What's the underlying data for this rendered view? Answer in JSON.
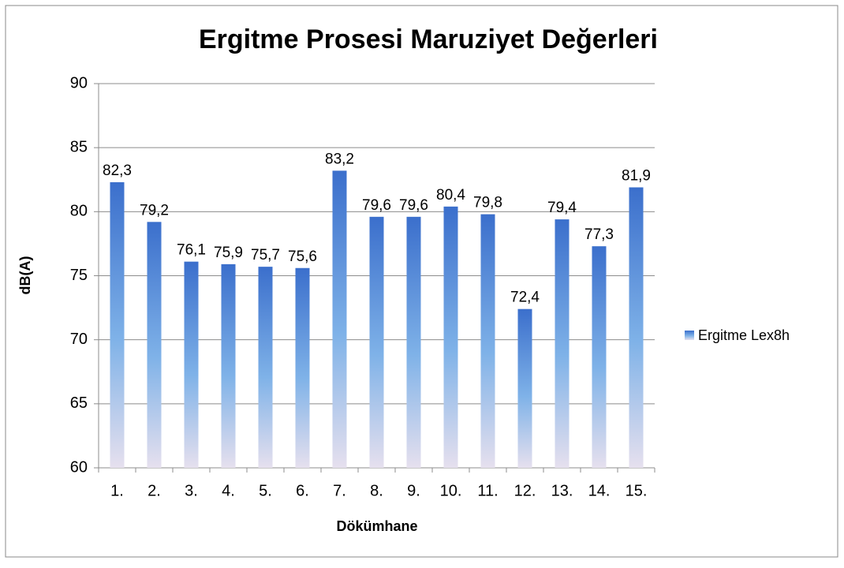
{
  "chart_data": {
    "type": "bar",
    "title": "Ergitme Prosesi Maruziyet Değerleri",
    "x_label": "Dökümhane",
    "y_label": "dB(A)",
    "categories": [
      "1.",
      "2.",
      "3.",
      "4.",
      "5.",
      "6.",
      "7.",
      "8.",
      "9.",
      "10.",
      "11.",
      "12.",
      "13.",
      "14.",
      "15."
    ],
    "series": [
      {
        "name": "Ergitme Lex8h",
        "color": "#3b6fcc",
        "values": [
          82.3,
          79.2,
          76.1,
          75.9,
          75.7,
          75.6,
          83.2,
          79.6,
          79.6,
          80.4,
          79.8,
          72.4,
          79.4,
          77.3,
          81.9
        ],
        "value_labels": [
          "82,3",
          "79,2",
          "76,1",
          "75,9",
          "75,7",
          "75,6",
          "83,2",
          "79,6",
          "79,6",
          "80,4",
          "79,8",
          "72,4",
          "79,4",
          "77,3",
          "81,9"
        ]
      }
    ],
    "ylim": [
      60,
      90
    ],
    "yticks": [
      60,
      65,
      70,
      75,
      80,
      85,
      90
    ],
    "grid": true,
    "legend": "right"
  }
}
